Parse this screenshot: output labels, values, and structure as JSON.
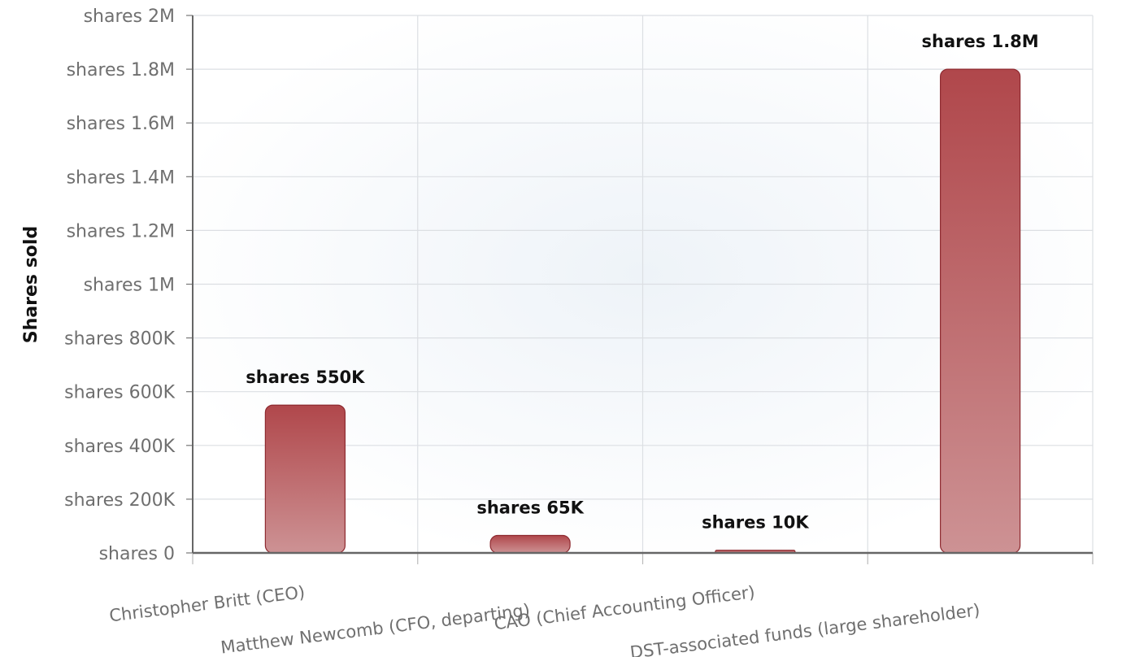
{
  "chart_data": {
    "type": "bar",
    "categories": [
      "Christopher Britt (CEO)",
      "Matthew Newcomb (CFO, departing)",
      "CAO (Chief Accounting Officer)",
      "DST-associated funds (large shareholder)"
    ],
    "values": [
      550000,
      65000,
      10000,
      1800000
    ],
    "data_labels": [
      "shares 550K",
      "shares 65K",
      "shares 10K",
      "shares 1.8M"
    ],
    "title": "",
    "xlabel": "",
    "ylabel": "Shares sold",
    "ylim": [
      0,
      2000000
    ],
    "yticks": [
      0,
      200000,
      400000,
      600000,
      800000,
      1000000,
      1200000,
      1400000,
      1600000,
      1800000,
      2000000
    ],
    "ytick_labels": [
      "shares 0",
      "shares 200K",
      "shares 400K",
      "shares 600K",
      "shares 800K",
      "shares 1M",
      "shares 1.2M",
      "shares 1.4M",
      "shares 1.6M",
      "shares 1.8M",
      "shares 2M"
    ],
    "grid": true,
    "legend": "none",
    "bar_color_top": "#b0474b",
    "bar_color_bottom": "#cd9294",
    "bar_stroke": "#8e2a30"
  }
}
